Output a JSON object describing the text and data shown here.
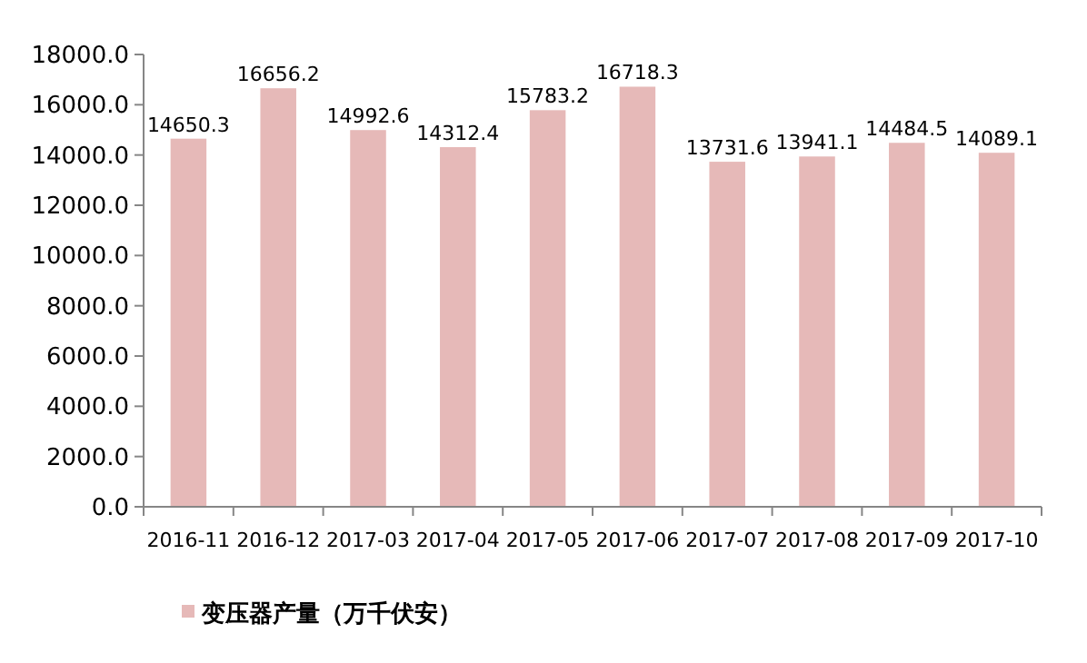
{
  "chart_data": {
    "type": "bar",
    "categories": [
      "2016-11",
      "2016-12",
      "2017-03",
      "2017-04",
      "2017-05",
      "2017-06",
      "2017-07",
      "2017-08",
      "2017-09",
      "2017-10"
    ],
    "series": [
      {
        "name": "变压器产量（万千伏安）",
        "color": "#e6b9b8",
        "values": [
          14650.3,
          16656.2,
          14992.6,
          14312.4,
          15783.2,
          16718.3,
          13731.6,
          13941.1,
          14484.5,
          14089.1
        ]
      }
    ],
    "ylim": [
      0,
      18000
    ],
    "yticks": [
      {
        "value": 0,
        "label": "0.0"
      },
      {
        "value": 2000,
        "label": "2000.0"
      },
      {
        "value": 4000,
        "label": "4000.0"
      },
      {
        "value": 6000,
        "label": "6000.0"
      },
      {
        "value": 8000,
        "label": "8000.0"
      },
      {
        "value": 10000,
        "label": "10000.0"
      },
      {
        "value": 12000,
        "label": "12000.0"
      },
      {
        "value": 14000,
        "label": "14000.0"
      },
      {
        "value": 16000,
        "label": "16000.0"
      },
      {
        "value": 18000,
        "label": "18000.0"
      }
    ],
    "data_labels": true,
    "legend": "bottom",
    "grid": false
  }
}
